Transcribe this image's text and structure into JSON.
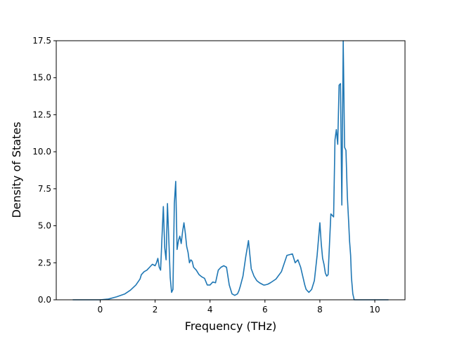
{
  "chart_data": {
    "type": "line",
    "title": "",
    "xlabel": "Frequency (THz)",
    "ylabel": "Density of States",
    "xlim": [
      -1.6,
      11.1
    ],
    "ylim": [
      0,
      17.5
    ],
    "xticks": [
      0,
      2,
      4,
      6,
      8,
      10
    ],
    "xtick_labels": [
      "0",
      "2",
      "4",
      "6",
      "8",
      "10"
    ],
    "yticks": [
      0,
      2.5,
      5,
      7.5,
      10,
      12.5,
      15,
      17.5
    ],
    "ytick_labels": [
      "0.0",
      "2.5",
      "5.0",
      "7.5",
      "10.0",
      "12.5",
      "15.0",
      "17.5"
    ],
    "grid": false,
    "series": [
      {
        "name": "",
        "color": "#1f77b4",
        "x": [
          -1.0,
          0.0,
          0.3,
          0.6,
          0.9,
          1.1,
          1.3,
          1.45,
          1.5,
          1.6,
          1.7,
          1.8,
          1.9,
          2.0,
          2.05,
          2.1,
          2.15,
          2.2,
          2.25,
          2.3,
          2.35,
          2.4,
          2.45,
          2.5,
          2.55,
          2.6,
          2.65,
          2.7,
          2.75,
          2.8,
          2.85,
          2.9,
          2.95,
          3.0,
          3.05,
          3.1,
          3.15,
          3.2,
          3.25,
          3.3,
          3.35,
          3.4,
          3.45,
          3.5,
          3.6,
          3.7,
          3.8,
          3.9,
          4.0,
          4.1,
          4.2,
          4.3,
          4.4,
          4.5,
          4.6,
          4.7,
          4.8,
          4.9,
          5.0,
          5.05,
          5.1,
          5.2,
          5.3,
          5.4,
          5.5,
          5.6,
          5.7,
          5.8,
          5.9,
          5.95,
          6.0,
          6.1,
          6.2,
          6.4,
          6.6,
          6.8,
          7.0,
          7.1,
          7.2,
          7.3,
          7.35,
          7.4,
          7.45,
          7.5,
          7.6,
          7.7,
          7.8,
          7.9,
          8.0,
          8.05,
          8.1,
          8.15,
          8.2,
          8.25,
          8.3,
          8.4,
          8.5,
          8.55,
          8.6,
          8.65,
          8.7,
          8.75,
          8.8,
          8.85,
          8.9,
          8.95,
          9.0,
          9.05,
          9.08,
          9.12,
          9.15,
          9.2,
          9.25,
          9.3,
          9.35,
          9.4,
          9.45,
          9.5,
          9.55,
          9.6,
          9.7,
          10.0,
          10.5
        ],
        "y": [
          0.0,
          0.0,
          0.05,
          0.2,
          0.4,
          0.65,
          1.0,
          1.4,
          1.7,
          1.9,
          2.0,
          2.2,
          2.4,
          2.3,
          2.5,
          2.8,
          2.2,
          2.0,
          4.2,
          6.3,
          3.5,
          2.7,
          6.5,
          4.0,
          1.5,
          0.5,
          0.7,
          6.5,
          8.0,
          3.4,
          4.0,
          4.3,
          3.8,
          4.6,
          5.2,
          4.5,
          3.6,
          3.2,
          2.5,
          2.7,
          2.6,
          2.2,
          2.1,
          2.0,
          1.7,
          1.55,
          1.45,
          1.0,
          1.0,
          1.2,
          1.15,
          2.0,
          2.2,
          2.3,
          2.2,
          1.0,
          0.4,
          0.3,
          0.4,
          0.6,
          0.9,
          1.6,
          2.9,
          4.0,
          2.1,
          1.6,
          1.3,
          1.15,
          1.05,
          1.0,
          1.0,
          1.05,
          1.15,
          1.4,
          1.9,
          3.0,
          3.1,
          2.5,
          2.7,
          2.2,
          1.8,
          1.4,
          1.0,
          0.7,
          0.5,
          0.7,
          1.3,
          3.0,
          5.2,
          3.8,
          2.8,
          2.4,
          1.8,
          1.6,
          1.7,
          5.8,
          5.6,
          10.8,
          11.5,
          10.5,
          14.5,
          14.6,
          6.4,
          17.5,
          10.3,
          10.1,
          7.0,
          5.2,
          4.0,
          3.0,
          1.5,
          0.4,
          0.0,
          0.0,
          0.0,
          0.0,
          0.0,
          0.0,
          0.0,
          0.0,
          0.0,
          0.0,
          0.0
        ]
      }
    ]
  }
}
